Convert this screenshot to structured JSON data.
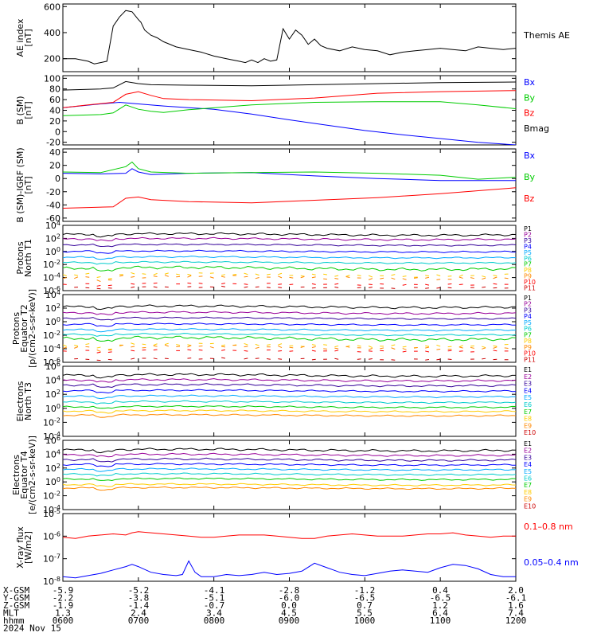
{
  "chart_data": [
    {
      "type": "line",
      "id": "ae",
      "ylabel": "AE index [nT]",
      "ylim": [
        100,
        620
      ],
      "yticks": [
        200,
        400,
        600
      ],
      "ytick_labels": [
        "200",
        "400",
        "600"
      ],
      "xlim": [
        0,
        360
      ],
      "series": [
        {
          "name": "Themis AE",
          "color": "#000000",
          "x": [
            0,
            10,
            20,
            25,
            30,
            35,
            40,
            45,
            50,
            55,
            60,
            62,
            65,
            70,
            75,
            80,
            90,
            100,
            110,
            120,
            130,
            140,
            145,
            150,
            155,
            160,
            165,
            170,
            175,
            180,
            185,
            190,
            195,
            200,
            205,
            210,
            220,
            230,
            240,
            250,
            260,
            270,
            280,
            290,
            300,
            310,
            320,
            330,
            340,
            350,
            360
          ],
          "y": [
            200,
            200,
            180,
            160,
            170,
            180,
            450,
            520,
            570,
            560,
            500,
            480,
            420,
            380,
            360,
            330,
            290,
            270,
            250,
            220,
            200,
            180,
            170,
            190,
            170,
            200,
            180,
            190,
            430,
            350,
            420,
            380,
            310,
            350,
            300,
            280,
            260,
            290,
            270,
            260,
            230,
            250,
            260,
            270,
            280,
            270,
            260,
            290,
            280,
            270,
            280
          ]
        }
      ]
    },
    {
      "type": "line",
      "id": "bsm",
      "ylabel": "B (SM) [nT]",
      "ylim": [
        -25,
        105
      ],
      "yticks": [
        -20,
        0,
        20,
        40,
        60,
        80,
        100
      ],
      "ytick_labels": [
        "-20",
        "0",
        "20",
        "40",
        "60",
        "80",
        "100"
      ],
      "xlim": [
        0,
        360
      ],
      "series": [
        {
          "name": "Bx",
          "color": "#0000ff",
          "x": [
            0,
            30,
            45,
            60,
            80,
            100,
            120,
            150,
            180,
            210,
            240,
            270,
            300,
            330,
            360
          ],
          "y": [
            45,
            52,
            55,
            52,
            48,
            45,
            42,
            33,
            22,
            12,
            2,
            -6,
            -13,
            -20,
            -25
          ]
        },
        {
          "name": "By",
          "color": "#00cc00",
          "x": [
            0,
            30,
            40,
            50,
            60,
            70,
            80,
            100,
            150,
            200,
            250,
            300,
            330,
            360
          ],
          "y": [
            30,
            32,
            35,
            50,
            42,
            38,
            36,
            41,
            50,
            55,
            56,
            56,
            50,
            43
          ]
        },
        {
          "name": "Bz",
          "color": "#ff0000",
          "x": [
            0,
            20,
            40,
            50,
            60,
            70,
            80,
            100,
            150,
            200,
            250,
            300,
            360
          ],
          "y": [
            45,
            50,
            55,
            70,
            75,
            68,
            62,
            60,
            58,
            63,
            72,
            75,
            77
          ]
        },
        {
          "name": "Bmag",
          "color": "#000000",
          "x": [
            0,
            30,
            40,
            50,
            60,
            70,
            100,
            150,
            200,
            250,
            300,
            360
          ],
          "y": [
            78,
            80,
            82,
            94,
            90,
            88,
            87,
            86,
            88,
            90,
            92,
            93
          ]
        }
      ]
    },
    {
      "type": "line",
      "id": "bigrf",
      "ylabel": "B (SM)-IGRF (SM) [nT]",
      "ylim": [
        -65,
        45
      ],
      "yticks": [
        -60,
        -40,
        -20,
        0,
        20,
        40
      ],
      "ytick_labels": [
        "-60",
        "-40",
        "-20",
        "0",
        "20",
        "40"
      ],
      "xlim": [
        0,
        360
      ],
      "series": [
        {
          "name": "Bx",
          "color": "#0000ff",
          "x": [
            0,
            30,
            50,
            55,
            60,
            70,
            100,
            150,
            200,
            250,
            300,
            360
          ],
          "y": [
            8,
            7,
            8,
            15,
            10,
            6,
            8,
            9,
            4,
            0,
            -3,
            -3
          ]
        },
        {
          "name": "By",
          "color": "#00cc00",
          "x": [
            0,
            30,
            50,
            55,
            60,
            70,
            100,
            150,
            200,
            250,
            300,
            330,
            360
          ],
          "y": [
            10,
            9,
            18,
            25,
            15,
            10,
            8,
            9,
            10,
            8,
            5,
            -1,
            2
          ]
        },
        {
          "name": "Bz",
          "color": "#ff0000",
          "x": [
            0,
            20,
            40,
            50,
            60,
            70,
            100,
            150,
            200,
            250,
            300,
            360
          ],
          "y": [
            -45,
            -44,
            -43,
            -30,
            -28,
            -32,
            -35,
            -37,
            -33,
            -29,
            -23,
            -14
          ]
        }
      ]
    },
    {
      "type": "line",
      "id": "pn1",
      "log": true,
      "ylabel": "Protons North T1",
      "ylim": [
        -6,
        4
      ],
      "yticks": [
        4,
        2,
        0,
        -2,
        -4,
        -6
      ],
      "ytick_labels": [
        "10^4",
        "10^2",
        "10^0",
        "10^-2",
        "10^-4",
        "10^-6"
      ],
      "xlim": [
        0,
        360
      ],
      "series": [
        {
          "name": "P1",
          "color": "#000000",
          "b": 2.6,
          "a": 0.3
        },
        {
          "name": "P2",
          "color": "#990099",
          "b": 1.9,
          "a": 0.25
        },
        {
          "name": "P3",
          "color": "#330099",
          "b": 1.0,
          "a": 0.2
        },
        {
          "name": "P4",
          "color": "#0000ff",
          "b": 0.0,
          "a": 0.2
        },
        {
          "name": "P5",
          "color": "#00aaff",
          "b": -0.9,
          "a": 0.2
        },
        {
          "name": "P6",
          "color": "#00cccc",
          "b": -1.7,
          "a": 0.2
        },
        {
          "name": "P7",
          "color": "#00cc00",
          "b": -2.6,
          "a": 0.4
        },
        {
          "name": "P8",
          "color": "#ffcc00",
          "b": -3.6,
          "a": 0.4,
          "seg": 1
        },
        {
          "name": "P9",
          "color": "#ff8800",
          "b": -4.0,
          "a": 0.4,
          "seg": 1
        },
        {
          "name": "P10",
          "color": "#ff0000",
          "b": -5.0,
          "a": 0.2,
          "seg": 2
        },
        {
          "name": "P11",
          "color": "#cc0000",
          "b": -5.5,
          "a": 0.2,
          "seg": 3
        }
      ]
    },
    {
      "type": "line",
      "id": "peq2",
      "log": true,
      "ylabel": "Protons Equator T2 [p/(cm2-s-sr-keV)]",
      "ylim": [
        -6,
        4
      ],
      "yticks": [
        4,
        2,
        0,
        -2,
        -4,
        -6
      ],
      "ytick_labels": [
        "10^4",
        "10^2",
        "10^0",
        "10^-2",
        "10^-4",
        "10^-6"
      ],
      "xlim": [
        0,
        360
      ],
      "series": [
        {
          "name": "P1",
          "color": "#000000",
          "b": 2.2,
          "a": 0.3
        },
        {
          "name": "P2",
          "color": "#990099",
          "b": 1.3,
          "a": 0.25
        },
        {
          "name": "P3",
          "color": "#330099",
          "b": 0.5,
          "a": 0.2
        },
        {
          "name": "P4",
          "color": "#0000ff",
          "b": -0.4,
          "a": 0.2
        },
        {
          "name": "P5",
          "color": "#00aaff",
          "b": -1.2,
          "a": 0.2
        },
        {
          "name": "P6",
          "color": "#00cccc",
          "b": -1.9,
          "a": 0.2
        },
        {
          "name": "P7",
          "color": "#00cc00",
          "b": -2.5,
          "a": 0.4
        },
        {
          "name": "P8",
          "color": "#ffcc00",
          "b": -3.5,
          "a": 0.4,
          "seg": 1
        },
        {
          "name": "P9",
          "color": "#ff8800",
          "b": -3.8,
          "a": 0.4,
          "seg": 1
        },
        {
          "name": "P10",
          "color": "#ff0000",
          "b": -4.3,
          "a": 0.2,
          "seg": 2
        },
        {
          "name": "P11",
          "color": "#cc0000",
          "b": -5.5,
          "a": 0.2,
          "seg": 3
        }
      ]
    },
    {
      "type": "line",
      "id": "en3",
      "log": true,
      "ylabel": "Electrons North T3",
      "ylim": [
        -4,
        6
      ],
      "yticks": [
        6,
        4,
        2,
        0,
        -2,
        -4
      ],
      "ytick_labels": [
        "10^6",
        "10^4",
        "10^2",
        "10^0",
        "10^-2",
        "10^-4"
      ],
      "xlim": [
        0,
        360
      ],
      "series": [
        {
          "name": "E1",
          "color": "#000000",
          "b": 4.7,
          "a": 0.3
        },
        {
          "name": "E2",
          "color": "#990099",
          "b": 4.0,
          "a": 0.25
        },
        {
          "name": "E3",
          "color": "#330099",
          "b": 3.3,
          "a": 0.25
        },
        {
          "name": "E4",
          "color": "#0000ff",
          "b": 2.5,
          "a": 0.2
        },
        {
          "name": "E5",
          "color": "#00aaff",
          "b": 1.7,
          "a": 0.2
        },
        {
          "name": "E6",
          "color": "#00cccc",
          "b": 0.9,
          "a": 0.2
        },
        {
          "name": "E7",
          "color": "#00cc00",
          "b": 0.2,
          "a": 0.2
        },
        {
          "name": "E8",
          "color": "#ffcc00",
          "b": -0.4,
          "a": 0.2
        },
        {
          "name": "E9",
          "color": "#ff8800",
          "b": -1.0,
          "a": 0.2
        },
        {
          "name": "E10",
          "color": "#cc0000",
          "b": -2.2,
          "a": 0.5,
          "seg": 1
        }
      ]
    },
    {
      "type": "line",
      "id": "eeq4",
      "log": true,
      "ylabel": "Electrons Equator T4 [e/(cm2-s-sr-keV)]",
      "ylim": [
        -4,
        6
      ],
      "yticks": [
        6,
        4,
        2,
        0,
        -2,
        -4
      ],
      "ytick_labels": [
        "10^6",
        "10^4",
        "10^2",
        "10^0",
        "10^-2",
        "10^-4"
      ],
      "xlim": [
        0,
        360
      ],
      "series": [
        {
          "name": "E1",
          "color": "#000000",
          "b": 4.6,
          "a": 0.3
        },
        {
          "name": "E2",
          "color": "#990099",
          "b": 3.9,
          "a": 0.25
        },
        {
          "name": "E3",
          "color": "#330099",
          "b": 3.2,
          "a": 0.25
        },
        {
          "name": "E4",
          "color": "#0000ff",
          "b": 2.5,
          "a": 0.2
        },
        {
          "name": "E5",
          "color": "#00aaff",
          "b": 1.8,
          "a": 0.2
        },
        {
          "name": "E6",
          "color": "#00cccc",
          "b": 1.1,
          "a": 0.2
        },
        {
          "name": "E7",
          "color": "#00cc00",
          "b": 0.4,
          "a": 0.2
        },
        {
          "name": "E8",
          "color": "#ffcc00",
          "b": -0.4,
          "a": 0.2
        },
        {
          "name": "E9",
          "color": "#ff8800",
          "b": -0.9,
          "a": 0.2
        },
        {
          "name": "E10",
          "color": "#cc0000",
          "b": -2.2,
          "a": 0.5,
          "seg": 1
        }
      ]
    },
    {
      "type": "line",
      "id": "xray",
      "log": true,
      "ylabel": "X-ray flux [W/m2]",
      "ylim": [
        -8,
        -5
      ],
      "yticks": [
        -5,
        -6,
        -7,
        -8
      ],
      "ytick_labels": [
        "10^-5",
        "10^-6",
        "10^-7",
        "10^-8"
      ],
      "xlim": [
        0,
        360
      ],
      "series": [
        {
          "name": "0.1-0.8 nm",
          "color": "#ff0000",
          "x": [
            0,
            10,
            20,
            30,
            40,
            50,
            55,
            60,
            70,
            80,
            90,
            100,
            110,
            120,
            130,
            140,
            150,
            160,
            170,
            180,
            190,
            200,
            210,
            220,
            230,
            240,
            250,
            260,
            270,
            280,
            290,
            300,
            310,
            320,
            330,
            340,
            350,
            360
          ],
          "y": [
            -6.05,
            -6.1,
            -6.0,
            -5.95,
            -5.9,
            -5.95,
            -5.85,
            -5.8,
            -5.85,
            -5.9,
            -5.95,
            -6.0,
            -6.05,
            -6.05,
            -6.0,
            -5.95,
            -5.95,
            -5.95,
            -6.0,
            -6.05,
            -6.1,
            -6.1,
            -6.0,
            -5.95,
            -5.9,
            -5.95,
            -6.0,
            -6.0,
            -6.0,
            -5.95,
            -5.9,
            -5.9,
            -5.85,
            -5.95,
            -6.0,
            -6.05,
            -6.0,
            -6.0
          ]
        },
        {
          "name": "0.05-0.4 nm",
          "color": "#0000ff",
          "x": [
            0,
            10,
            20,
            30,
            40,
            50,
            55,
            60,
            70,
            80,
            90,
            95,
            100,
            105,
            110,
            120,
            130,
            140,
            150,
            160,
            170,
            180,
            190,
            200,
            210,
            215,
            220,
            230,
            240,
            250,
            260,
            270,
            280,
            290,
            300,
            310,
            320,
            330,
            340,
            350,
            360
          ],
          "y": [
            -7.8,
            -7.85,
            -7.75,
            -7.65,
            -7.5,
            -7.35,
            -7.25,
            -7.35,
            -7.6,
            -7.7,
            -7.75,
            -7.7,
            -7.1,
            -7.6,
            -7.8,
            -7.8,
            -7.7,
            -7.75,
            -7.7,
            -7.6,
            -7.7,
            -7.65,
            -7.55,
            -7.2,
            -7.4,
            -7.5,
            -7.6,
            -7.7,
            -7.75,
            -7.65,
            -7.55,
            -7.5,
            -7.55,
            -7.6,
            -7.4,
            -7.25,
            -7.3,
            -7.45,
            -7.7,
            -7.8,
            -7.8
          ]
        }
      ]
    }
  ],
  "legends": {
    "ae": [
      "Themis AE"
    ],
    "bsm": [
      "Bx",
      "By",
      "Bz",
      "Bmag"
    ],
    "bigrf": [
      "Bx",
      "By",
      "Bz"
    ],
    "pn1": [
      "P1",
      "P2",
      "P3",
      "P4",
      "P5",
      "P6",
      "P7",
      "P8",
      "P9",
      "P10",
      "P11"
    ],
    "peq2": [
      "P1",
      "P2",
      "P3",
      "P4",
      "P5",
      "P6",
      "P7",
      "P8",
      "P9",
      "P10",
      "P11"
    ],
    "en3": [
      "E1",
      "E2",
      "E3",
      "E4",
      "E5",
      "E6",
      "E7",
      "E8",
      "E9",
      "E10"
    ],
    "eeq4": [
      "E1",
      "E2",
      "E3",
      "E4",
      "E5",
      "E6",
      "E7",
      "E8",
      "E9",
      "E10"
    ],
    "xray": [
      "0.1–0.8 nm",
      "0.05–0.4 nm"
    ]
  },
  "footer": {
    "rows": [
      {
        "label": "X-GSM",
        "values": [
          "-5.9",
          "-5.2",
          "-4.1",
          "-2.8",
          "-1.2",
          "0.4",
          "2.0"
        ]
      },
      {
        "label": "Y-GSM",
        "values": [
          "-2.2",
          "-3.8",
          "-5.1",
          "-6.0",
          "-6.5",
          "-6.5",
          "-6.1"
        ]
      },
      {
        "label": "Z-GSM",
        "values": [
          "-1.9",
          "-1.4",
          "-0.7",
          "0.0",
          "0.7",
          "1.2",
          "1.6"
        ]
      },
      {
        "label": "MLT",
        "values": [
          "1.3",
          "2.4",
          "3.4",
          "4.5",
          "5.5",
          "6.4",
          "7.4"
        ]
      },
      {
        "label": "hhmm",
        "values": [
          "0600",
          "0700",
          "0800",
          "0900",
          "1000",
          "1100",
          "1200"
        ]
      }
    ],
    "date": "2024 Nov 15"
  }
}
